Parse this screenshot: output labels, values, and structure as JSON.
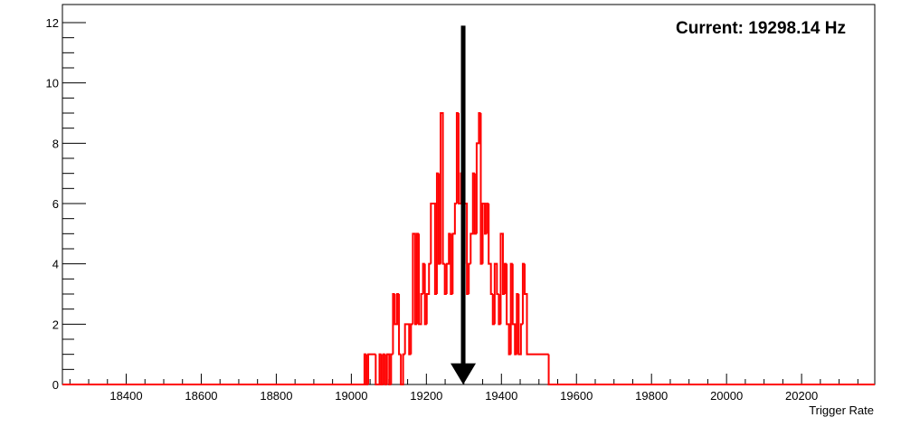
{
  "chart_data": {
    "type": "histogram",
    "title": "",
    "xlabel": "Trigger Rate",
    "ylabel": "",
    "annotation": "Current: 19298.14 Hz",
    "marker_x": 19298.14,
    "xlim": [
      18230,
      20395
    ],
    "ylim": [
      0,
      12.6
    ],
    "x_ticks": [
      18400,
      18600,
      18800,
      19000,
      19200,
      19400,
      19600,
      19800,
      20000,
      20200
    ],
    "y_ticks": [
      0,
      2,
      4,
      6,
      8,
      10,
      12
    ],
    "grid": false,
    "legend": "none",
    "series": [
      {
        "color": "#ff0000",
        "bin_width": 5.3,
        "bins": [
          [
            19035,
            1
          ],
          [
            19040,
            0
          ],
          [
            19045,
            1
          ],
          [
            19050,
            1
          ],
          [
            19060,
            1
          ],
          [
            19065,
            0
          ],
          [
            19075,
            1
          ],
          [
            19080,
            0
          ],
          [
            19085,
            1
          ],
          [
            19090,
            0
          ],
          [
            19095,
            1
          ],
          [
            19101,
            0
          ],
          [
            19106,
            1
          ],
          [
            19111,
            3
          ],
          [
            19116,
            2
          ],
          [
            19122,
            3
          ],
          [
            19127,
            1
          ],
          [
            19132,
            0
          ],
          [
            19138,
            1
          ],
          [
            19143,
            2
          ],
          [
            19148,
            2
          ],
          [
            19154,
            1
          ],
          [
            19159,
            2
          ],
          [
            19164,
            5
          ],
          [
            19170,
            2
          ],
          [
            19175,
            5
          ],
          [
            19180,
            2
          ],
          [
            19186,
            3
          ],
          [
            19191,
            4
          ],
          [
            19196,
            2
          ],
          [
            19201,
            3
          ],
          [
            19207,
            4
          ],
          [
            19212,
            6
          ],
          [
            19217,
            6
          ],
          [
            19223,
            3
          ],
          [
            19228,
            7
          ],
          [
            19233,
            4
          ],
          [
            19238,
            9
          ],
          [
            19244,
            4
          ],
          [
            19249,
            3
          ],
          [
            19254,
            4
          ],
          [
            19260,
            5
          ],
          [
            19265,
            3
          ],
          [
            19270,
            5
          ],
          [
            19276,
            6
          ],
          [
            19281,
            9
          ],
          [
            19286,
            6
          ],
          [
            19292,
            7
          ],
          [
            19297,
            4
          ],
          [
            19302,
            6
          ],
          [
            19308,
            3
          ],
          [
            19313,
            4
          ],
          [
            19318,
            5
          ],
          [
            19324,
            7
          ],
          [
            19329,
            5
          ],
          [
            19334,
            8
          ],
          [
            19340,
            9
          ],
          [
            19345,
            4
          ],
          [
            19350,
            6
          ],
          [
            19356,
            5
          ],
          [
            19361,
            6
          ],
          [
            19366,
            4
          ],
          [
            19372,
            3
          ],
          [
            19377,
            2
          ],
          [
            19382,
            4
          ],
          [
            19388,
            3
          ],
          [
            19393,
            2
          ],
          [
            19398,
            5
          ],
          [
            19404,
            3
          ],
          [
            19409,
            4
          ],
          [
            19414,
            2
          ],
          [
            19420,
            1
          ],
          [
            19425,
            4
          ],
          [
            19430,
            2
          ],
          [
            19436,
            1
          ],
          [
            19441,
            3
          ],
          [
            19446,
            1
          ],
          [
            19452,
            2
          ],
          [
            19457,
            4
          ],
          [
            19462,
            3
          ],
          [
            19468,
            1
          ],
          [
            19473,
            1
          ],
          [
            19478,
            1
          ],
          [
            19484,
            1
          ],
          [
            19489,
            1
          ],
          [
            19494,
            1
          ],
          [
            19500,
            1
          ],
          [
            19505,
            1
          ],
          [
            19510,
            1
          ],
          [
            19516,
            1
          ],
          [
            19521,
            1
          ],
          [
            19526,
            0
          ]
        ]
      }
    ]
  }
}
